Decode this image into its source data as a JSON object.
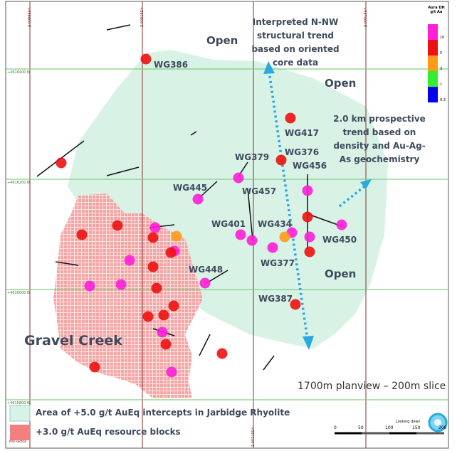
{
  "map": {
    "grid_east": [
      "+586600 E",
      "+587000 E",
      "+587200 E",
      "+587400 E"
    ],
    "grid_north": [
      "+4616400 N",
      "+4616200 N",
      "+4616000 N",
      "+4615800 N"
    ],
    "open_labels": [
      "Open",
      "Open",
      "Open"
    ],
    "annotations": {
      "structural": "Interpreted N-NW structural trend based on oriented core data",
      "prospective": "2.0 km prospective trend based on density and Au-Ag-As geochemistry",
      "deposit": "Gravel Creek",
      "view": "1700m planview – 200m slice"
    },
    "drillholes": [
      "WG386",
      "WG417",
      "WG376",
      "WG456",
      "WG379",
      "WG445",
      "WG457",
      "WG401",
      "WG434",
      "WG450",
      "WG377",
      "WG448",
      "WG387"
    ],
    "colorbar": {
      "title": "Aura DH g/t Au",
      "ticks": [
        "10",
        "5",
        "3",
        "1",
        "0.3"
      ],
      "colors": [
        "#ff1fd8",
        "#ee1111",
        "#ff9a1a",
        "#33ee33",
        "#0000ee"
      ]
    },
    "legend": [
      {
        "label": "Area of +5.0 g/t AuEq intercepts in Jarbidge Rhyolite",
        "color": "#d8f2e6"
      },
      {
        "label": "+3.0 g/t AuEq resource blocks",
        "color": "#f47f7f"
      }
    ],
    "plan_section": "Plan section",
    "looking_down": "Looking down",
    "scale": [
      "0",
      "50",
      "100",
      "150",
      "200"
    ]
  }
}
